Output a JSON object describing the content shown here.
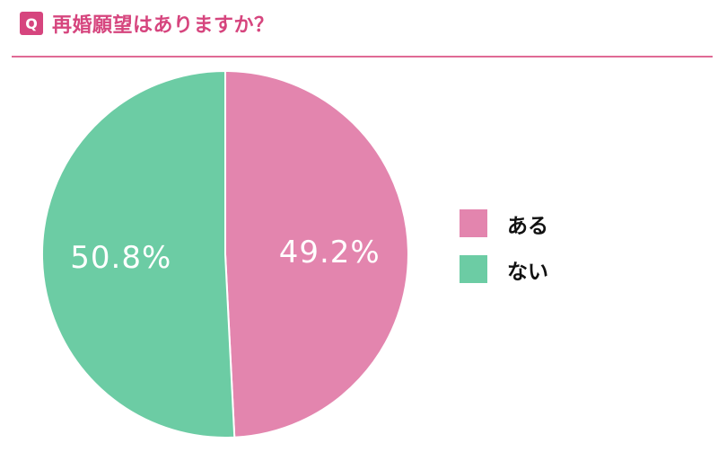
{
  "header": {
    "q_icon": "Q",
    "title": "再婚願望はありますか？"
  },
  "colors": {
    "accent": "#d6457e",
    "divider": "#e06a95",
    "pink": "#e385ae",
    "green": "#6cccA4"
  },
  "chart_data": {
    "type": "pie",
    "categories": [
      "ある",
      "ない"
    ],
    "values": [
      49.2,
      50.8
    ],
    "value_labels": [
      "49.2%",
      "50.8%"
    ],
    "colors": [
      "#e385ae",
      "#6ccca4"
    ],
    "start": "top",
    "direction": "clockwise",
    "legend_position": "right"
  }
}
